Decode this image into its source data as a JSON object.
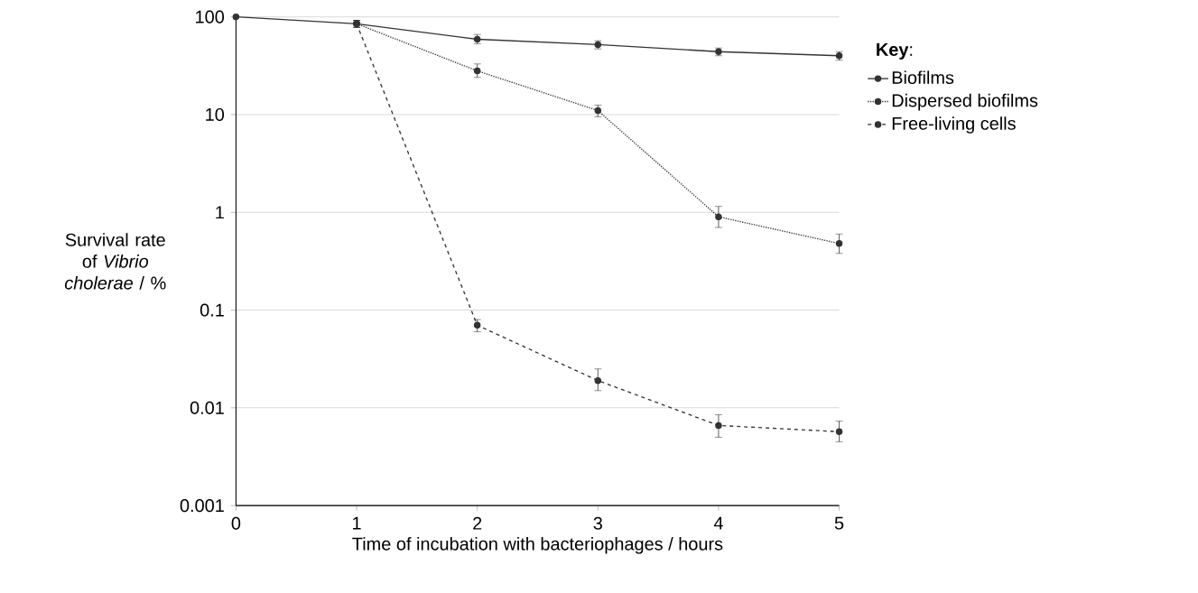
{
  "chart_data": {
    "type": "line",
    "xlabel": "Time of incubation with bacteriophages / hours",
    "ylabel": "Survival rate of *Vibrio cholerae* / %",
    "legend_title": "**Key**:",
    "log": "y",
    "grid": "y",
    "legend": "right",
    "marker": "circle",
    "xlim": [
      0,
      5
    ],
    "xticks": [
      0,
      1,
      2,
      3,
      4,
      5
    ],
    "ylim": [
      0.001,
      100
    ],
    "yticks": [
      0.001,
      0.01,
      0.1,
      1,
      10,
      100
    ],
    "series": [
      {
        "name": "Biofilms",
        "color": "#333333",
        "line_style": "solid",
        "x": [
          0,
          1,
          2,
          3,
          4,
          5
        ],
        "values": [
          100,
          85,
          59,
          52,
          44,
          40
        ],
        "errors": [
          null,
          [
            78,
            92
          ],
          [
            53,
            66
          ],
          [
            47,
            57
          ],
          [
            40,
            48
          ],
          [
            36,
            44
          ]
        ]
      },
      {
        "name": "Dispersed biofilms",
        "color": "#333333",
        "line_style": "dotted",
        "x": [
          1,
          2,
          3,
          4,
          5
        ],
        "values": [
          85,
          28,
          11,
          0.9,
          0.48
        ],
        "errors": [
          [
            78,
            92
          ],
          [
            24,
            33
          ],
          [
            9.5,
            12.5
          ],
          [
            0.7,
            1.15
          ],
          [
            0.38,
            0.6
          ]
        ]
      },
      {
        "name": "Free-living cells",
        "color": "#333333",
        "line_style": "dashed",
        "x": [
          1,
          2,
          3,
          4,
          5
        ],
        "values": [
          85,
          0.07,
          0.019,
          0.0066,
          0.0057
        ],
        "errors": [
          [
            78,
            92
          ],
          [
            0.06,
            0.08
          ],
          [
            0.015,
            0.025
          ],
          [
            0.005,
            0.0085
          ],
          [
            0.0045,
            0.0073
          ]
        ]
      }
    ]
  }
}
